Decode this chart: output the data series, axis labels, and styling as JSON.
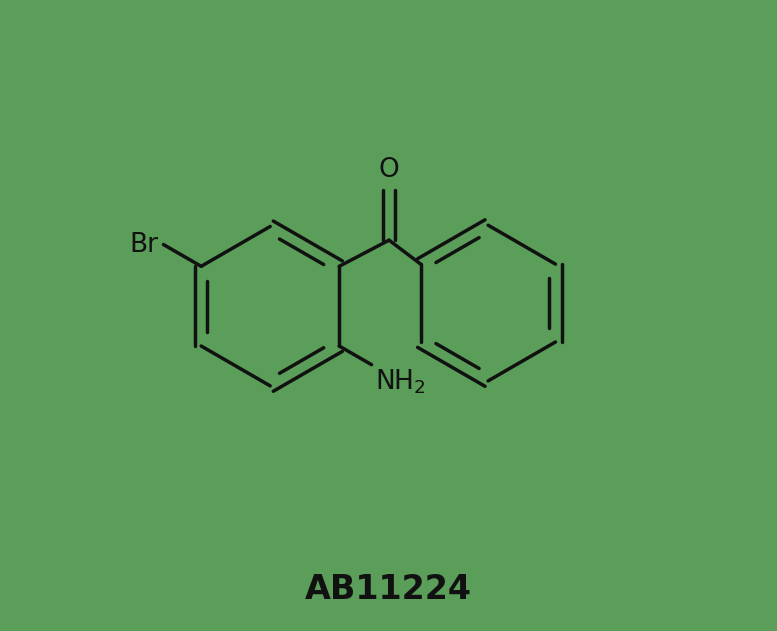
{
  "background_color": "#5a9e5a",
  "title": "AB11224",
  "title_fontsize": 24,
  "title_fontweight": "bold",
  "line_color": "#111111",
  "line_width": 2.5,
  "text_color": "#111111",
  "label_fontsize": 19,
  "figsize": [
    7.77,
    6.31
  ],
  "dpi": 100
}
